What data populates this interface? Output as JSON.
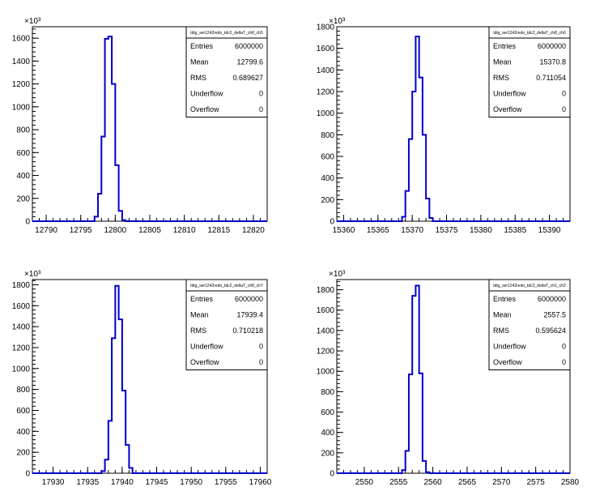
{
  "panels": [
    {
      "stats": {
        "title": "tdig_ser1242redo_tdc2_deltaT_ch8_ch5",
        "rows": [
          {
            "label": "Entries",
            "value": "6000000"
          },
          {
            "label": "Mean",
            "value": "12799.6"
          },
          {
            "label": "RMS",
            "value": "0.689627"
          },
          {
            "label": "Underflow",
            "value": "0"
          },
          {
            "label": "Overflow",
            "value": "0"
          }
        ]
      },
      "chart_data": {
        "type": "bar",
        "color": "#0000cc",
        "xlim": [
          12788,
          12822
        ],
        "ylim": [
          0,
          1700
        ],
        "xticks": [
          12790,
          12795,
          12800,
          12805,
          12810,
          12815,
          12820
        ],
        "yticks": [
          0,
          200,
          400,
          600,
          800,
          1000,
          1200,
          1400,
          1600
        ],
        "y_multiplier": "×10³",
        "bin_width": 0.5,
        "bins": [
          {
            "x": 12797,
            "y": 40
          },
          {
            "x": 12797.5,
            "y": 240
          },
          {
            "x": 12798,
            "y": 740
          },
          {
            "x": 12798.5,
            "y": 1595
          },
          {
            "x": 12799,
            "y": 1615
          },
          {
            "x": 12799.5,
            "y": 1200
          },
          {
            "x": 12800,
            "y": 490
          },
          {
            "x": 12800.5,
            "y": 90
          },
          {
            "x": 12801,
            "y": 10
          }
        ]
      }
    },
    {
      "stats": {
        "title": "tdig_ser1242redo_tdc2_deltaT_ch8_ch6",
        "rows": [
          {
            "label": "Entries",
            "value": "6000000"
          },
          {
            "label": "Mean",
            "value": "15370.8"
          },
          {
            "label": "RMS",
            "value": "0.711054"
          },
          {
            "label": "Underflow",
            "value": "0"
          },
          {
            "label": "Overflow",
            "value": "0"
          }
        ]
      },
      "chart_data": {
        "type": "bar",
        "color": "#0000cc",
        "xlim": [
          15359,
          15393
        ],
        "ylim": [
          0,
          1800
        ],
        "xticks": [
          15360,
          15365,
          15370,
          15375,
          15380,
          15385,
          15390
        ],
        "yticks": [
          0,
          200,
          400,
          600,
          800,
          1000,
          1200,
          1400,
          1600,
          1800
        ],
        "y_multiplier": "×10³",
        "bin_width": 0.5,
        "bins": [
          {
            "x": 15368.5,
            "y": 40
          },
          {
            "x": 15369,
            "y": 280
          },
          {
            "x": 15369.5,
            "y": 760
          },
          {
            "x": 15370,
            "y": 1200
          },
          {
            "x": 15370.5,
            "y": 1710
          },
          {
            "x": 15371,
            "y": 1330
          },
          {
            "x": 15371.5,
            "y": 800
          },
          {
            "x": 15372,
            "y": 210
          },
          {
            "x": 15372.5,
            "y": 30
          }
        ]
      }
    },
    {
      "stats": {
        "title": "tdig_ser1242redo_tdc2_deltaT_ch8_ch7",
        "rows": [
          {
            "label": "Entries",
            "value": "6000000"
          },
          {
            "label": "Mean",
            "value": "17939.4"
          },
          {
            "label": "RMS",
            "value": "0.710218"
          },
          {
            "label": "Underflow",
            "value": "0"
          },
          {
            "label": "Overflow",
            "value": "0"
          }
        ]
      },
      "chart_data": {
        "type": "bar",
        "color": "#0000cc",
        "xlim": [
          17927,
          17961
        ],
        "ylim": [
          0,
          1850
        ],
        "xticks": [
          17930,
          17935,
          17940,
          17945,
          17950,
          17955,
          17960
        ],
        "yticks": [
          0,
          200,
          400,
          600,
          800,
          1000,
          1200,
          1400,
          1600,
          1800
        ],
        "y_multiplier": "×10³",
        "bin_width": 0.5,
        "bins": [
          {
            "x": 17937,
            "y": 20
          },
          {
            "x": 17937.5,
            "y": 130
          },
          {
            "x": 17938,
            "y": 500
          },
          {
            "x": 17938.5,
            "y": 1290
          },
          {
            "x": 17939,
            "y": 1790
          },
          {
            "x": 17939.5,
            "y": 1470
          },
          {
            "x": 17940,
            "y": 790
          },
          {
            "x": 17940.5,
            "y": 270
          },
          {
            "x": 17941,
            "y": 50
          }
        ]
      }
    },
    {
      "stats": {
        "title": "tdig_ser1242redo_tdc2_deltaT_ch1_ch2",
        "rows": [
          {
            "label": "Entries",
            "value": "6000000"
          },
          {
            "label": "Mean",
            "value": "2557.5"
          },
          {
            "label": "RMS",
            "value": "0.595624"
          },
          {
            "label": "Underflow",
            "value": "0"
          },
          {
            "label": "Overflow",
            "value": "0"
          }
        ]
      },
      "chart_data": {
        "type": "bar",
        "color": "#0000cc",
        "xlim": [
          2546,
          2580
        ],
        "ylim": [
          0,
          1900
        ],
        "xticks": [
          2550,
          2555,
          2560,
          2565,
          2570,
          2575,
          2580
        ],
        "yticks": [
          0,
          200,
          400,
          600,
          800,
          1000,
          1200,
          1400,
          1600,
          1800
        ],
        "y_multiplier": "×10³",
        "bin_width": 0.5,
        "bins": [
          {
            "x": 2555.5,
            "y": 30
          },
          {
            "x": 2556,
            "y": 220
          },
          {
            "x": 2556.5,
            "y": 970
          },
          {
            "x": 2557,
            "y": 1740
          },
          {
            "x": 2557.5,
            "y": 1840
          },
          {
            "x": 2558,
            "y": 980
          },
          {
            "x": 2558.5,
            "y": 120
          },
          {
            "x": 2559,
            "y": 10
          }
        ]
      }
    }
  ]
}
